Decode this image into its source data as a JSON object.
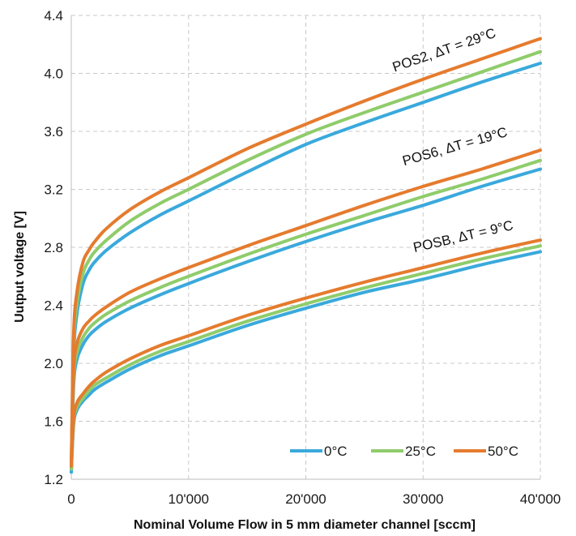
{
  "chart_data": {
    "type": "line",
    "xlabel": "Nominal Volume Flow in 5 mm diameter channel [sccm]",
    "ylabel": "Uutput voltage [V]",
    "xlim": [
      0,
      40000
    ],
    "ylim": [
      1.2,
      4.4
    ],
    "x_ticks": [
      "0",
      "10'000",
      "20'000",
      "30'000",
      "40'000"
    ],
    "y_ticks": [
      "1.2",
      "1.6",
      "2.0",
      "2.4",
      "2.8",
      "3.2",
      "3.6",
      "4.0",
      "4.4"
    ],
    "grid": true,
    "legend_position": "bottom-right",
    "legend": [
      "0°C",
      "25°C",
      "50°C"
    ],
    "colors": {
      "0°C": "#3aa9dc",
      "25°C": "#8fcc6b",
      "50°C": "#e57b2e"
    },
    "annotations": [
      "POS2, ΔT = 29°C",
      "POS6, ΔT = 19°C",
      "POSB, ΔT = 9°C"
    ],
    "x": [
      0,
      200,
      500,
      1000,
      1500,
      2000,
      3000,
      5000,
      7500,
      10000,
      15000,
      20000,
      25000,
      30000,
      35000,
      40000
    ],
    "series": [
      {
        "group": "POS2, ΔT = 29°C",
        "name": "0°C",
        "values": [
          1.25,
          2.05,
          2.35,
          2.55,
          2.64,
          2.7,
          2.78,
          2.9,
          3.02,
          3.12,
          3.32,
          3.51,
          3.66,
          3.8,
          3.94,
          4.07
        ]
      },
      {
        "group": "POS2, ΔT = 29°C",
        "name": "25°C",
        "values": [
          1.28,
          2.12,
          2.42,
          2.62,
          2.71,
          2.77,
          2.85,
          2.98,
          3.1,
          3.2,
          3.4,
          3.58,
          3.73,
          3.87,
          4.01,
          4.15
        ]
      },
      {
        "group": "POS2, ΔT = 29°C",
        "name": "50°C",
        "values": [
          1.3,
          2.2,
          2.5,
          2.7,
          2.78,
          2.84,
          2.93,
          3.06,
          3.18,
          3.28,
          3.48,
          3.65,
          3.81,
          3.96,
          4.1,
          4.24
        ]
      },
      {
        "group": "POS6, ΔT = 19°C",
        "name": "0°C",
        "values": [
          1.25,
          1.85,
          2.03,
          2.13,
          2.19,
          2.23,
          2.29,
          2.38,
          2.47,
          2.55,
          2.7,
          2.84,
          2.97,
          3.09,
          3.22,
          3.34
        ]
      },
      {
        "group": "POS6, ΔT = 19°C",
        "name": "25°C",
        "values": [
          1.28,
          1.9,
          2.08,
          2.18,
          2.24,
          2.28,
          2.34,
          2.43,
          2.52,
          2.6,
          2.75,
          2.89,
          3.02,
          3.15,
          3.27,
          3.4
        ]
      },
      {
        "group": "POS6, ΔT = 19°C",
        "name": "50°C",
        "values": [
          1.3,
          1.95,
          2.14,
          2.24,
          2.29,
          2.33,
          2.39,
          2.49,
          2.58,
          2.66,
          2.81,
          2.95,
          3.09,
          3.22,
          3.34,
          3.47
        ]
      },
      {
        "group": "POSB, ΔT = 9°C",
        "name": "0°C",
        "values": [
          1.25,
          1.58,
          1.68,
          1.74,
          1.78,
          1.82,
          1.87,
          1.96,
          2.05,
          2.12,
          2.26,
          2.38,
          2.49,
          2.58,
          2.68,
          2.77
        ]
      },
      {
        "group": "POSB, ΔT = 9°C",
        "name": "25°C",
        "values": [
          1.27,
          1.6,
          1.7,
          1.76,
          1.81,
          1.85,
          1.9,
          1.99,
          2.08,
          2.15,
          2.29,
          2.41,
          2.52,
          2.62,
          2.72,
          2.81
        ]
      },
      {
        "group": "POSB, ΔT = 9°C",
        "name": "50°C",
        "values": [
          1.29,
          1.62,
          1.73,
          1.79,
          1.84,
          1.88,
          1.94,
          2.03,
          2.12,
          2.19,
          2.33,
          2.45,
          2.56,
          2.66,
          2.76,
          2.85
        ]
      }
    ]
  }
}
